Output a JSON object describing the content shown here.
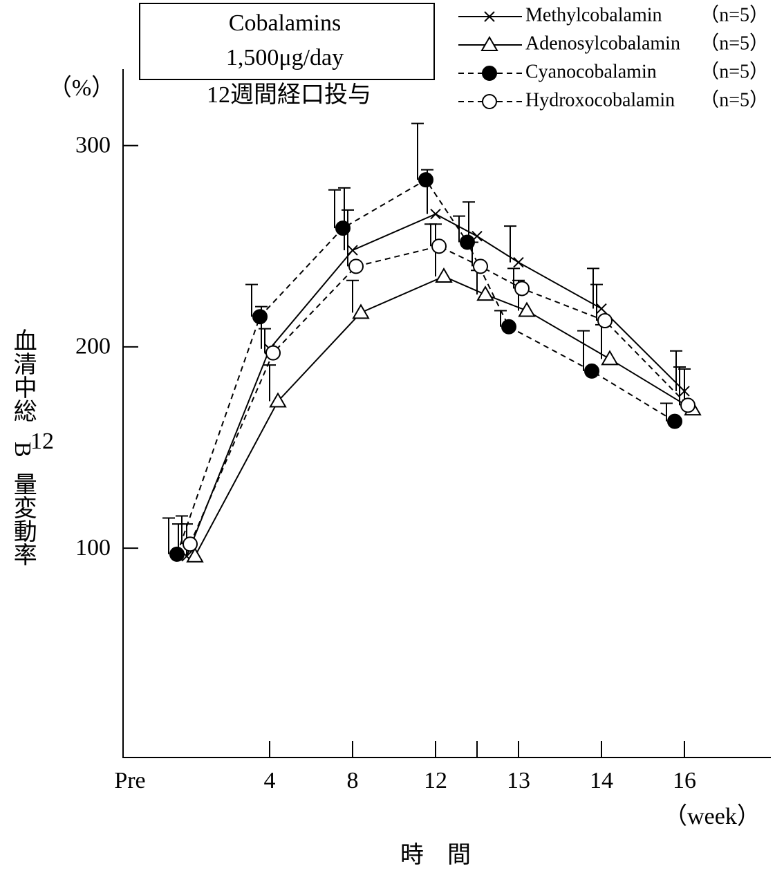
{
  "chart_data": {
    "type": "line",
    "box_lines": [
      "Cobalamins",
      "1,500μg/day"
    ],
    "subtitle": "12週間経口投与",
    "y_unit": "（%）",
    "y_label": [
      "血清中総",
      "B",
      "12",
      "量変動率"
    ],
    "x_label": "時　間",
    "x_unit": "（week）",
    "categories": [
      "Pre",
      "4",
      "8",
      "12",
      null,
      "13",
      "14",
      "16"
    ],
    "ylim": [
      -4,
      338
    ],
    "yticks": [
      100,
      200,
      300
    ],
    "series": [
      {
        "name": "Methylcobalamin",
        "n_label": "（n=5）",
        "color": "#000000",
        "marker": "x",
        "dashed": false,
        "values": [
          96,
          199,
          248,
          266,
          255,
          242,
          219,
          178
        ],
        "errors": [
          16,
          21,
          31,
          22,
          17,
          18,
          20,
          20
        ]
      },
      {
        "name": "Adenosylcobalamin",
        "n_label": "（n=5）",
        "color": "#000000",
        "marker": "triangle",
        "dashed": false,
        "values": [
          96,
          173,
          217,
          235,
          226,
          218,
          194,
          169
        ],
        "errors": [
          16,
          18,
          16,
          26,
          12,
          15,
          17,
          20
        ]
      },
      {
        "name": "Cyanocobalamin",
        "n_label": "（n=5）",
        "color": "#000000",
        "marker": "filled-circle",
        "dashed": true,
        "values": [
          97,
          215,
          259,
          283,
          252,
          210,
          188,
          163
        ],
        "errors": [
          18,
          16,
          19,
          28,
          13,
          8,
          20,
          9
        ]
      },
      {
        "name": "Hydroxocobalamin",
        "n_label": "（n=5）",
        "color": "#000000",
        "marker": "open-circle",
        "dashed": true,
        "values": [
          102,
          197,
          240,
          250,
          240,
          229,
          213,
          171
        ],
        "errors": [
          14,
          12,
          28,
          11,
          12,
          10,
          18,
          19
        ]
      }
    ]
  }
}
